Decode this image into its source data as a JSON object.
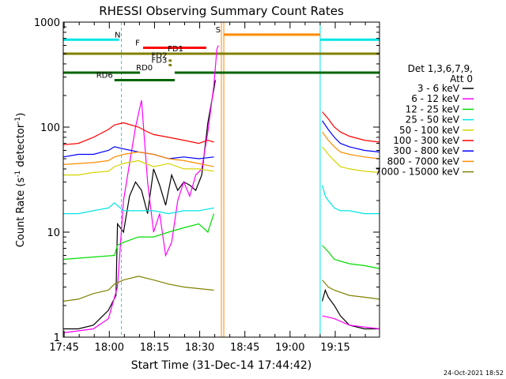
{
  "chart_data": {
    "type": "line",
    "title": "RHESSI Observing Summary Count Rates",
    "xlabel": "Start Time (31-Dec-14 17:44:42)",
    "ylabel": "Count Rate (s",
    "ylabel_sup": "-1",
    "ylabel_rest": " detector",
    "ylabel_sup2": "-1",
    "ylabel_end": ")",
    "y_scale": "log",
    "ylim": [
      1,
      1000
    ],
    "xlim_minutes": [
      0,
      105
    ],
    "x_tick_labels": [
      "17:45",
      "18:00",
      "18:15",
      "18:30",
      "18:45",
      "19:00",
      "19:15"
    ],
    "y_tick_labels": [
      "1",
      "10",
      "100",
      "1000"
    ],
    "timestamp": "24-Oct-2021 18:52",
    "legend": {
      "header1": "Det 1,3,6,7,9,",
      "header2": "Att 0",
      "entries": [
        {
          "label": "3 - 6 keV",
          "color": "#000000"
        },
        {
          "label": "6 - 12 keV",
          "color": "#ff00ff"
        },
        {
          "label": "12 - 25 keV",
          "color": "#00dd00"
        },
        {
          "label": "25 - 50 keV",
          "color": "#00e5e5"
        },
        {
          "label": "50 - 100 keV",
          "color": "#d4d400"
        },
        {
          "label": "100 - 300 keV",
          "color": "#ff0000"
        },
        {
          "label": "300 - 800 keV",
          "color": "#0000ff"
        },
        {
          "label": "800 - 7000 keV",
          "color": "#ff8c00"
        },
        {
          "label": "7000 - 15000 keV",
          "color": "#808000"
        }
      ]
    },
    "series": [
      {
        "name": "3 - 6 keV",
        "color": "#000000",
        "segments": [
          {
            "x": [
              0,
              5,
              10,
              15,
              17.5,
              18,
              20,
              22,
              24,
              26,
              28,
              30,
              32,
              34,
              36,
              38,
              40,
              42,
              44,
              46,
              48,
              50,
              50.5
            ],
            "y": [
              1.2,
              1.2,
              1.3,
              1.8,
              2.5,
              12,
              10,
              22,
              30,
              25,
              15,
              40,
              28,
              18,
              35,
              25,
              30,
              28,
              25,
              35,
              110,
              230,
              280
            ]
          },
          {
            "x": [
              86,
              87,
              88,
              90,
              92,
              95,
              100,
              105
            ],
            "y": [
              2.2,
              2.8,
              2.4,
              2.0,
              1.6,
              1.3,
              1.2,
              1.2
            ]
          }
        ]
      },
      {
        "name": "6 - 12 keV",
        "color": "#ff00ff",
        "segments": [
          {
            "x": [
              0,
              10,
              15,
              18,
              20,
              24,
              26,
              28,
              30,
              32,
              34,
              36,
              38,
              40,
              42,
              44,
              46,
              48,
              50,
              51,
              51.5
            ],
            "y": [
              1.1,
              1.2,
              1.5,
              3,
              20,
              100,
              180,
              30,
              10,
              15,
              6,
              8,
              20,
              30,
              22,
              35,
              40,
              90,
              250,
              550,
              600
            ]
          },
          {
            "x": [
              86,
              90,
              95,
              105
            ],
            "y": [
              1.6,
              1.5,
              1.3,
              1.2
            ]
          }
        ]
      },
      {
        "name": "12 - 25 keV",
        "color": "#00dd00",
        "segments": [
          {
            "x": [
              0,
              10,
              17,
              18,
              20,
              25,
              30,
              35,
              40,
              45,
              48,
              50
            ],
            "y": [
              5.5,
              5.8,
              6,
              7.5,
              8,
              9,
              9,
              10,
              11,
              12,
              10,
              15
            ]
          },
          {
            "x": [
              86,
              88,
              90,
              95,
              100,
              105
            ],
            "y": [
              7.5,
              6.5,
              5.5,
              5,
              4.8,
              4.5
            ]
          }
        ]
      },
      {
        "name": "25 - 50 keV",
        "color": "#00e5e5",
        "segments": [
          {
            "x": [
              0,
              5,
              10,
              15,
              17,
              20,
              25,
              30,
              35,
              40,
              45,
              50
            ],
            "y": [
              15,
              15,
              16,
              17,
              19,
              16,
              16,
              16,
              15,
              16,
              16,
              17
            ]
          },
          {
            "x": [
              86,
              87,
              88,
              90,
              92,
              95,
              100,
              105
            ],
            "y": [
              28,
              22,
              20,
              17,
              16,
              16,
              15,
              15
            ]
          }
        ]
      },
      {
        "name": "50 - 100 keV",
        "color": "#d4d400",
        "segments": [
          {
            "x": [
              0,
              5,
              10,
              15,
              17,
              20,
              25,
              30,
              35,
              40,
              45,
              50
            ],
            "y": [
              35,
              35,
              37,
              38,
              42,
              45,
              48,
              42,
              45,
              40,
              40,
              38
            ]
          },
          {
            "x": [
              86,
              88,
              90,
              92,
              95,
              100,
              105
            ],
            "y": [
              65,
              55,
              48,
              42,
              40,
              38,
              37
            ]
          }
        ]
      },
      {
        "name": "100 - 300 keV",
        "color": "#ff0000",
        "segments": [
          {
            "x": [
              0,
              5,
              10,
              15,
              17,
              20,
              25,
              28,
              30,
              35,
              40,
              45,
              48,
              50
            ],
            "y": [
              68,
              70,
              80,
              95,
              105,
              110,
              100,
              90,
              85,
              80,
              75,
              70,
              75,
              72
            ]
          },
          {
            "x": [
              86,
              88,
              90,
              92,
              95,
              100,
              105
            ],
            "y": [
              140,
              120,
              100,
              90,
              82,
              75,
              72
            ]
          }
        ]
      },
      {
        "name": "300 - 800 keV",
        "color": "#0000ff",
        "segments": [
          {
            "x": [
              0,
              5,
              10,
              15,
              17,
              20,
              25,
              30,
              35,
              40,
              45,
              50
            ],
            "y": [
              52,
              55,
              55,
              60,
              65,
              62,
              58,
              55,
              50,
              52,
              50,
              52
            ]
          },
          {
            "x": [
              86,
              88,
              90,
              92,
              95,
              100,
              105
            ],
            "y": [
              115,
              95,
              80,
              70,
              65,
              60,
              58
            ]
          }
        ]
      },
      {
        "name": "800 - 7000 keV",
        "color": "#ff8c00",
        "segments": [
          {
            "x": [
              0,
              5,
              10,
              15,
              17,
              20,
              25,
              30,
              35,
              40,
              45,
              50
            ],
            "y": [
              44,
              45,
              46,
              48,
              52,
              55,
              58,
              55,
              50,
              48,
              45,
              42
            ]
          },
          {
            "x": [
              86,
              88,
              90,
              92,
              95,
              100,
              105
            ],
            "y": [
              90,
              75,
              65,
              58,
              55,
              52,
              50
            ]
          }
        ]
      },
      {
        "name": "7000 - 15000 keV",
        "color": "#808000",
        "segments": [
          {
            "x": [
              0,
              5,
              10,
              15,
              17,
              20,
              25,
              30,
              35,
              40,
              45,
              50
            ],
            "y": [
              2.2,
              2.3,
              2.6,
              2.8,
              3.2,
              3.5,
              3.8,
              3.5,
              3.2,
              3.0,
              2.9,
              2.8
            ]
          },
          {
            "x": [
              86,
              88,
              90,
              95,
              100,
              105
            ],
            "y": [
              3.5,
              3.0,
              2.8,
              2.5,
              2.4,
              2.3
            ]
          }
        ]
      }
    ],
    "vertical_lines": [
      {
        "x": 0,
        "color": "#00e5e5",
        "style": "solid"
      },
      {
        "x": 19.3,
        "color": "#00e5e5",
        "style": "dashed"
      },
      {
        "x": 52.5,
        "color": "#ff8c00",
        "style": "solid"
      },
      {
        "x": 53.3,
        "color": "#ff8c00",
        "style": "solid"
      },
      {
        "x": 85.3,
        "color": "#00e5e5",
        "style": "solid"
      },
      {
        "x": 105,
        "color": "#00e5e5",
        "style": "dashed"
      }
    ],
    "flag_bars": [
      {
        "label": "N",
        "label_color": "#00e5e5",
        "color": "#00e5e5",
        "y": 680,
        "ranges": [
          [
            0,
            18.5
          ],
          [
            85.3,
            105
          ]
        ]
      },
      {
        "label": "S",
        "label_color": "#ff8c00",
        "color": "#ff8c00",
        "y": 760,
        "ranges": [
          [
            53.3,
            85.3
          ]
        ]
      },
      {
        "label": "F",
        "label_color": "#ff0000",
        "color": "#ff0000",
        "y": 570,
        "ranges": [
          [
            26.5,
            47.5
          ]
        ]
      },
      {
        "label": "FD1",
        "label_color": "#808000",
        "color": "#808000",
        "y": 500,
        "ranges": [
          [
            0,
            105
          ]
        ]
      },
      {
        "label": "FD2",
        "label_color": "#808000",
        "color": "#808000",
        "y": 430,
        "ranges": [
          [
            35,
            36
          ]
        ]
      },
      {
        "label": "FD3",
        "label_color": "#808000",
        "color": "#808000",
        "y": 390,
        "ranges": [
          [
            35,
            36
          ]
        ]
      },
      {
        "label": "RD0",
        "label_color": "#006400",
        "color": "#006400",
        "y": 330,
        "ranges": [
          [
            0,
            25.5
          ],
          [
            37,
            105
          ]
        ]
      },
      {
        "label": "RD6",
        "label_color": "#006400",
        "color": "#006400",
        "y": 280,
        "ranges": [
          [
            17,
            37
          ]
        ]
      }
    ]
  }
}
